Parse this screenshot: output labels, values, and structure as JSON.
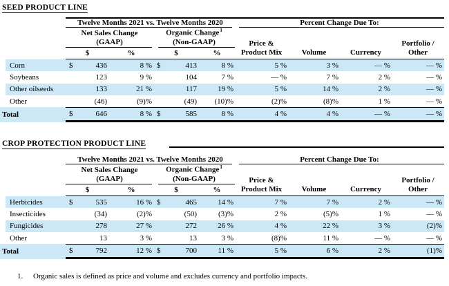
{
  "colors": {
    "stripe": "#cce7f6",
    "text": "#000000"
  },
  "header": {
    "period": "Twelve Months 2021 vs. Twelve Months 2020",
    "due_to": "Percent Change Due To:",
    "net_sales_1": "Net Sales Change",
    "net_sales_2": "(GAAP)",
    "organic_1": "Organic Change",
    "organic_sup": "1",
    "organic_2": "(Non-GAAP)",
    "dollar": "$",
    "pct": "%",
    "price_1": "Price &",
    "price_2": "Product Mix",
    "volume": "Volume",
    "currency": "Currency",
    "portfolio_1": "Portfolio /",
    "portfolio_2": "Other"
  },
  "tables": [
    {
      "title": "SEED PRODUCT LINE",
      "rows": [
        {
          "label": "Corn",
          "d1": "$",
          "v1": "436",
          "p1": "8 %",
          "d2": "$",
          "v2": "413",
          "p2": "8 %",
          "mix": "5 %",
          "vol": "3 %",
          "cur": "— %",
          "port": "— %"
        },
        {
          "label": "Soybeans",
          "d1": "",
          "v1": "123",
          "p1": "9 %",
          "d2": "",
          "v2": "104",
          "p2": "7 %",
          "mix": "— %",
          "vol": "7 %",
          "cur": "2 %",
          "port": "— %"
        },
        {
          "label": "Other oilseeds",
          "d1": "",
          "v1": "133",
          "p1": "21 %",
          "d2": "",
          "v2": "117",
          "p2": "19 %",
          "mix": "5 %",
          "vol": "14 %",
          "cur": "2 %",
          "port": "— %"
        },
        {
          "label": "Other",
          "d1": "",
          "v1": "(46)",
          "p1": "(9)%",
          "d2": "",
          "v2": "(49)",
          "p2": "(10)%",
          "mix": "(2)%",
          "vol": "(8)%",
          "cur": "1 %",
          "port": "— %"
        }
      ],
      "total": {
        "label": "Total",
        "d1": "$",
        "v1": "646",
        "p1": "8 %",
        "d2": "$",
        "v2": "585",
        "p2": "8 %",
        "mix": "4 %",
        "vol": "4 %",
        "cur": "— %",
        "port": "— %"
      }
    },
    {
      "title": "CROP PROTECTION PRODUCT LINE",
      "rows": [
        {
          "label": "Herbicides",
          "d1": "$",
          "v1": "535",
          "p1": "16 %",
          "d2": "$",
          "v2": "465",
          "p2": "14 %",
          "mix": "7 %",
          "vol": "7 %",
          "cur": "2 %",
          "port": "— %"
        },
        {
          "label": "Insecticides",
          "d1": "",
          "v1": "(34)",
          "p1": "(2)%",
          "d2": "",
          "v2": "(50)",
          "p2": "(3)%",
          "mix": "2 %",
          "vol": "(5)%",
          "cur": "1 %",
          "port": "— %"
        },
        {
          "label": "Fungicides",
          "d1": "",
          "v1": "278",
          "p1": "27 %",
          "d2": "",
          "v2": "272",
          "p2": "26 %",
          "mix": "4 %",
          "vol": "22 %",
          "cur": "3 %",
          "port": "(2)%"
        },
        {
          "label": "Other",
          "d1": "",
          "v1": "13",
          "p1": "3 %",
          "d2": "",
          "v2": "13",
          "p2": "3 %",
          "mix": "(8)%",
          "vol": "11 %",
          "cur": "— %",
          "port": "— %"
        }
      ],
      "total": {
        "label": "Total",
        "d1": "$",
        "v1": "792",
        "p1": "12 %",
        "d2": "$",
        "v2": "700",
        "p2": "11 %",
        "mix": "5 %",
        "vol": "6 %",
        "cur": "2 %",
        "port": "(1)%"
      }
    }
  ],
  "footnote": {
    "number": "1.",
    "text": "Organic sales is defined as price and volume and excludes currency and portfolio impacts."
  }
}
